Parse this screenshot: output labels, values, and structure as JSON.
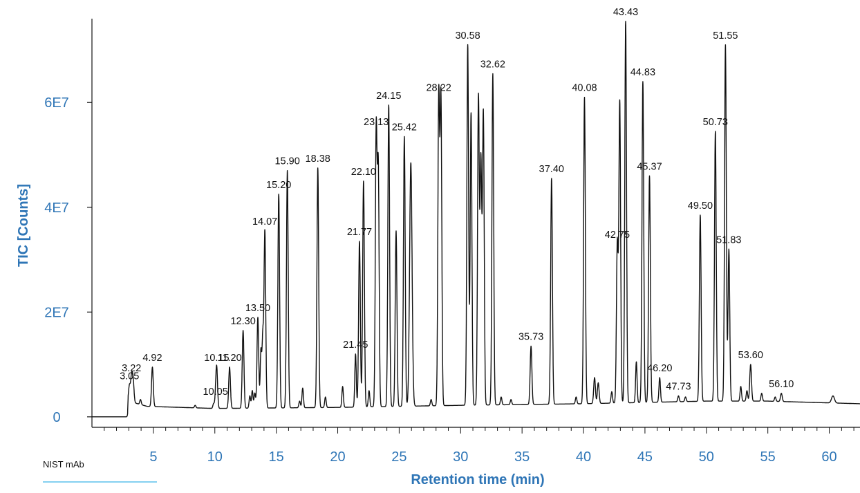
{
  "colors": {
    "axis_text": "#2e75b6",
    "trace": "#111111",
    "legend_line": "#5bc0eb"
  },
  "chart_data": {
    "type": "line",
    "title": "",
    "xlabel": "Retention time (min)",
    "ylabel": "TIC [Counts]",
    "xlim": [
      0,
      62.5
    ],
    "ylim": [
      -2000000,
      76000000
    ],
    "x_ticks": [
      5,
      10,
      15,
      20,
      25,
      30,
      35,
      40,
      45,
      50,
      55,
      60
    ],
    "x_tick_labels": [
      "5",
      "10",
      "15",
      "20",
      "25",
      "30",
      "35",
      "40",
      "45",
      "50",
      "55",
      "60"
    ],
    "y_ticks": [
      0,
      20000000,
      40000000,
      60000000
    ],
    "y_tick_labels": [
      "0",
      "2E7",
      "4E7",
      "6E7"
    ],
    "legend": [
      {
        "name": "NIST mAb",
        "color": "#5bc0eb"
      }
    ],
    "baseline": [
      [
        0,
        0
      ],
      [
        2.9,
        0
      ],
      [
        2.95,
        3000000
      ],
      [
        4.5,
        2000000
      ],
      [
        10,
        1600000
      ],
      [
        20,
        1800000
      ],
      [
        30,
        2200000
      ],
      [
        40,
        2500000
      ],
      [
        50,
        3000000
      ],
      [
        55,
        3000000
      ],
      [
        62.5,
        2500000
      ]
    ],
    "peaks": [
      {
        "label": "3.05",
        "x": 3.05,
        "y": 6000000,
        "w": 0.07
      },
      {
        "label": "3.22",
        "x": 3.22,
        "y": 7500000,
        "w": 0.07
      },
      {
        "label": "4.92",
        "x": 4.92,
        "y": 9500000,
        "w": 0.07
      },
      {
        "label": "10.05",
        "x": 10.05,
        "y": 3000000,
        "w": 0.06
      },
      {
        "label": "10.15",
        "x": 10.15,
        "y": 9500000,
        "w": 0.07
      },
      {
        "label": "11.20",
        "x": 11.2,
        "y": 9500000,
        "w": 0.07
      },
      {
        "label": "12.30",
        "x": 12.3,
        "y": 16500000,
        "w": 0.07
      },
      {
        "label": "13.50",
        "x": 13.5,
        "y": 19000000,
        "w": 0.07
      },
      {
        "label": "14.07",
        "x": 14.07,
        "y": 35500000,
        "w": 0.07
      },
      {
        "label": "15.20",
        "x": 15.2,
        "y": 42500000,
        "w": 0.07
      },
      {
        "label": "15.90",
        "x": 15.9,
        "y": 47000000,
        "w": 0.07
      },
      {
        "label": "18.38",
        "x": 18.38,
        "y": 47500000,
        "w": 0.07
      },
      {
        "label": "21.45",
        "x": 21.45,
        "y": 12000000,
        "w": 0.06
      },
      {
        "label": "21.77",
        "x": 21.77,
        "y": 33500000,
        "w": 0.07
      },
      {
        "label": "22.10",
        "x": 22.1,
        "y": 45000000,
        "w": 0.07
      },
      {
        "label": "23.13",
        "x": 23.13,
        "y": 54500000,
        "w": 0.07
      },
      {
        "label": "24.15",
        "x": 24.15,
        "y": 59500000,
        "w": 0.07
      },
      {
        "label": "25.42",
        "x": 25.42,
        "y": 53500000,
        "w": 0.07
      },
      {
        "label": "28.22",
        "x": 28.22,
        "y": 61000000,
        "w": 0.07
      },
      {
        "label": "30.58",
        "x": 30.58,
        "y": 71000000,
        "w": 0.07
      },
      {
        "label": "32.62",
        "x": 32.62,
        "y": 65500000,
        "w": 0.07
      },
      {
        "label": "35.73",
        "x": 35.73,
        "y": 13500000,
        "w": 0.07
      },
      {
        "label": "37.40",
        "x": 37.4,
        "y": 45500000,
        "w": 0.07
      },
      {
        "label": "40.08",
        "x": 40.08,
        "y": 61000000,
        "w": 0.07
      },
      {
        "label": "42.75",
        "x": 42.75,
        "y": 33000000,
        "w": 0.07
      },
      {
        "label": "43.43",
        "x": 43.43,
        "y": 75500000,
        "w": 0.07
      },
      {
        "label": "44.83",
        "x": 44.83,
        "y": 64000000,
        "w": 0.07
      },
      {
        "label": "45.37",
        "x": 45.37,
        "y": 46000000,
        "w": 0.07
      },
      {
        "label": "46.20",
        "x": 46.2,
        "y": 7500000,
        "w": 0.06
      },
      {
        "label": "47.73",
        "x": 47.73,
        "y": 4000000,
        "w": 0.06
      },
      {
        "label": "49.50",
        "x": 49.5,
        "y": 38500000,
        "w": 0.07
      },
      {
        "label": "50.73",
        "x": 50.73,
        "y": 54500000,
        "w": 0.07
      },
      {
        "label": "51.55",
        "x": 51.55,
        "y": 71000000,
        "w": 0.07
      },
      {
        "label": "51.83",
        "x": 51.83,
        "y": 32000000,
        "w": 0.07
      },
      {
        "label": "53.60",
        "x": 53.6,
        "y": 10000000,
        "w": 0.07
      },
      {
        "label": "56.10",
        "x": 56.1,
        "y": 4500000,
        "w": 0.07
      },
      {
        "label": "",
        "x": 3.35,
        "y": 7000000,
        "w": 0.07
      },
      {
        "label": "",
        "x": 3.95,
        "y": 3300000,
        "w": 0.06
      },
      {
        "label": "",
        "x": 8.4,
        "y": 2200000,
        "w": 0.06
      },
      {
        "label": "",
        "x": 9.9,
        "y": 2500000,
        "w": 0.06
      },
      {
        "label": "",
        "x": 12.85,
        "y": 4000000,
        "w": 0.06
      },
      {
        "label": "",
        "x": 13.05,
        "y": 5000000,
        "w": 0.06
      },
      {
        "label": "",
        "x": 13.25,
        "y": 4500000,
        "w": 0.06
      },
      {
        "label": "",
        "x": 13.75,
        "y": 12500000,
        "w": 0.06
      },
      {
        "label": "",
        "x": 13.9,
        "y": 14500000,
        "w": 0.06
      },
      {
        "label": "",
        "x": 16.9,
        "y": 3000000,
        "w": 0.06
      },
      {
        "label": "",
        "x": 17.15,
        "y": 5500000,
        "w": 0.06
      },
      {
        "label": "",
        "x": 19.0,
        "y": 3800000,
        "w": 0.06
      },
      {
        "label": "",
        "x": 20.4,
        "y": 5800000,
        "w": 0.06
      },
      {
        "label": "",
        "x": 22.55,
        "y": 5000000,
        "w": 0.06
      },
      {
        "label": "",
        "x": 23.3,
        "y": 47000000,
        "w": 0.07
      },
      {
        "label": "",
        "x": 24.75,
        "y": 35500000,
        "w": 0.07
      },
      {
        "label": "",
        "x": 25.95,
        "y": 48500000,
        "w": 0.1
      },
      {
        "label": "",
        "x": 27.6,
        "y": 3300000,
        "w": 0.06
      },
      {
        "label": "",
        "x": 28.4,
        "y": 60500000,
        "w": 0.07
      },
      {
        "label": "",
        "x": 30.85,
        "y": 58000000,
        "w": 0.07
      },
      {
        "label": "",
        "x": 31.45,
        "y": 61000000,
        "w": 0.07
      },
      {
        "label": "",
        "x": 31.65,
        "y": 48500000,
        "w": 0.07
      },
      {
        "label": "",
        "x": 31.85,
        "y": 58000000,
        "w": 0.07
      },
      {
        "label": "",
        "x": 33.3,
        "y": 3800000,
        "w": 0.06
      },
      {
        "label": "",
        "x": 34.1,
        "y": 3300000,
        "w": 0.06
      },
      {
        "label": "",
        "x": 39.4,
        "y": 3800000,
        "w": 0.06
      },
      {
        "label": "",
        "x": 40.9,
        "y": 7500000,
        "w": 0.07
      },
      {
        "label": "",
        "x": 41.2,
        "y": 6500000,
        "w": 0.07
      },
      {
        "label": "",
        "x": 42.3,
        "y": 4800000,
        "w": 0.06
      },
      {
        "label": "",
        "x": 42.95,
        "y": 60000000,
        "w": 0.07
      },
      {
        "label": "",
        "x": 44.3,
        "y": 10500000,
        "w": 0.06
      },
      {
        "label": "",
        "x": 48.3,
        "y": 3800000,
        "w": 0.06
      },
      {
        "label": "",
        "x": 52.8,
        "y": 5800000,
        "w": 0.06
      },
      {
        "label": "",
        "x": 53.3,
        "y": 5000000,
        "w": 0.06
      },
      {
        "label": "",
        "x": 54.5,
        "y": 4500000,
        "w": 0.06
      },
      {
        "label": "",
        "x": 55.6,
        "y": 3800000,
        "w": 0.06
      },
      {
        "label": "",
        "x": 60.3,
        "y": 4000000,
        "w": 0.12
      }
    ]
  }
}
